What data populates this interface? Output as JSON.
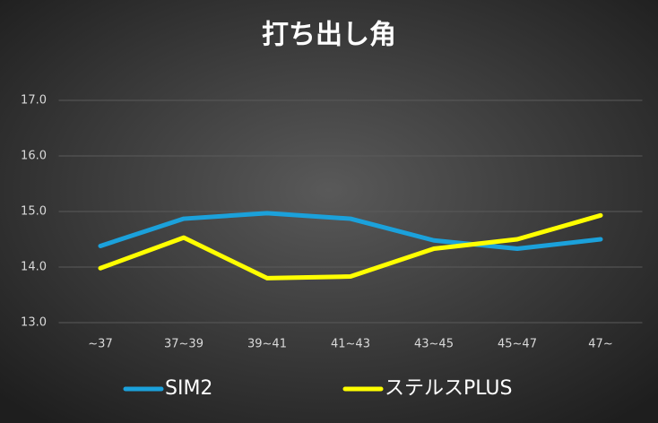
{
  "chart_data": {
    "type": "line",
    "title": "打ち出し角",
    "categories": [
      "~37",
      "37~39",
      "39~41",
      "41~43",
      "43~45",
      "45~47",
      "47~"
    ],
    "series": [
      {
        "name": "SIM2",
        "color": "#1ba1db",
        "values": [
          14.38,
          14.87,
          14.97,
          14.87,
          14.48,
          14.33,
          14.5
        ]
      },
      {
        "name": "ステルスPLUS",
        "color": "#ffff00",
        "values": [
          13.98,
          14.53,
          13.8,
          13.83,
          14.33,
          14.5,
          14.93
        ]
      }
    ],
    "ylim": [
      13,
      17
    ],
    "yticks": [
      {
        "value": 13,
        "label": "13.0"
      },
      {
        "value": 14,
        "label": "14.0"
      },
      {
        "value": 15,
        "label": "15.0"
      },
      {
        "value": 16,
        "label": "16.0"
      },
      {
        "value": 17,
        "label": "17.0"
      }
    ],
    "grid": true,
    "legend": "bottom"
  }
}
